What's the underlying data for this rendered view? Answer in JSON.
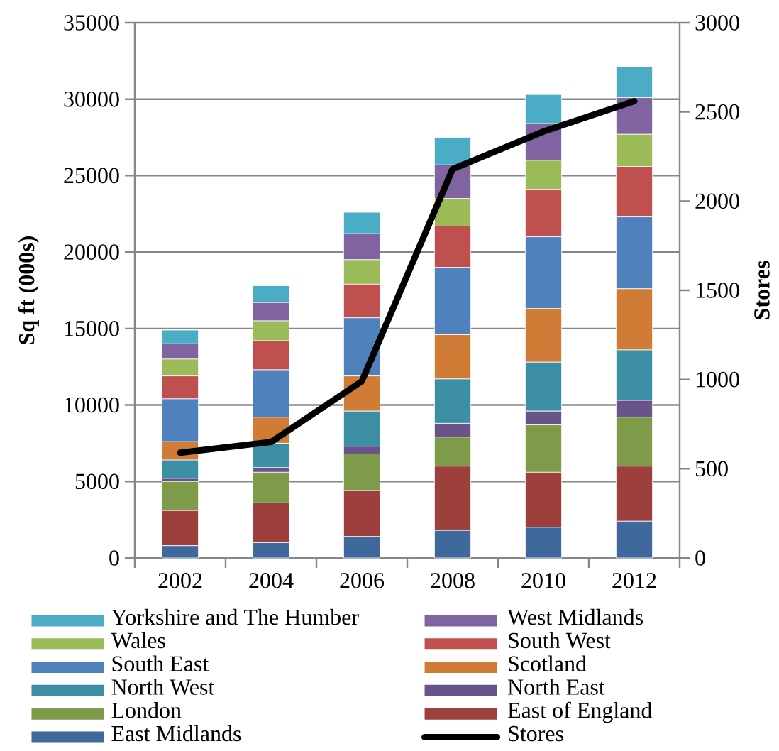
{
  "chart_data": {
    "type": "bar",
    "stacked": true,
    "ylabel": "Sq ft (000s)",
    "y2label": "Stores",
    "categories": [
      "2002",
      "2004",
      "2006",
      "2008",
      "2010",
      "2012"
    ],
    "ylim": [
      0,
      35000
    ],
    "yticks": [
      0,
      5000,
      10000,
      15000,
      20000,
      25000,
      30000,
      35000
    ],
    "y2lim": [
      0,
      3000
    ],
    "y2ticks": [
      0,
      500,
      1000,
      1500,
      2000,
      2500,
      3000
    ],
    "grid": "y",
    "legend": "bottom",
    "series": [
      {
        "name": "East Midlands",
        "color": "#3f699d",
        "values": [
          800,
          1000,
          1400,
          1800,
          2000,
          2400
        ]
      },
      {
        "name": "East of England",
        "color": "#9c3f3d",
        "values": [
          2300,
          2600,
          3000,
          4200,
          3600,
          3600
        ]
      },
      {
        "name": "London",
        "color": "#7e9b49",
        "values": [
          1900,
          2000,
          2400,
          1900,
          3100,
          3200
        ]
      },
      {
        "name": "North East",
        "color": "#68548a",
        "values": [
          200,
          300,
          500,
          900,
          900,
          1100
        ]
      },
      {
        "name": "North West",
        "color": "#3c8ea4",
        "values": [
          1200,
          1600,
          2300,
          2900,
          3200,
          3300
        ]
      },
      {
        "name": "Scotland",
        "color": "#d07c37",
        "values": [
          1200,
          1700,
          2300,
          2900,
          3500,
          4000
        ]
      },
      {
        "name": "South East",
        "color": "#4f81bd",
        "values": [
          2800,
          3100,
          3800,
          4400,
          4700,
          4700
        ]
      },
      {
        "name": "South West",
        "color": "#c0504d",
        "values": [
          1500,
          1900,
          2200,
          2700,
          3100,
          3300
        ]
      },
      {
        "name": "Wales",
        "color": "#9bbb59",
        "values": [
          1100,
          1300,
          1600,
          1800,
          1900,
          2100
        ]
      },
      {
        "name": "West Midlands",
        "color": "#8064a2",
        "values": [
          1000,
          1200,
          1700,
          2200,
          2400,
          2400
        ]
      },
      {
        "name": "Yorkshire and The Humber",
        "color": "#4bacc6",
        "values": [
          900,
          1100,
          1400,
          1800,
          1900,
          2000
        ]
      },
      {
        "name": "Stores",
        "type": "line",
        "axis": "y2",
        "color": "#000000",
        "values": [
          590,
          650,
          990,
          2180,
          2390,
          2560
        ]
      }
    ]
  }
}
